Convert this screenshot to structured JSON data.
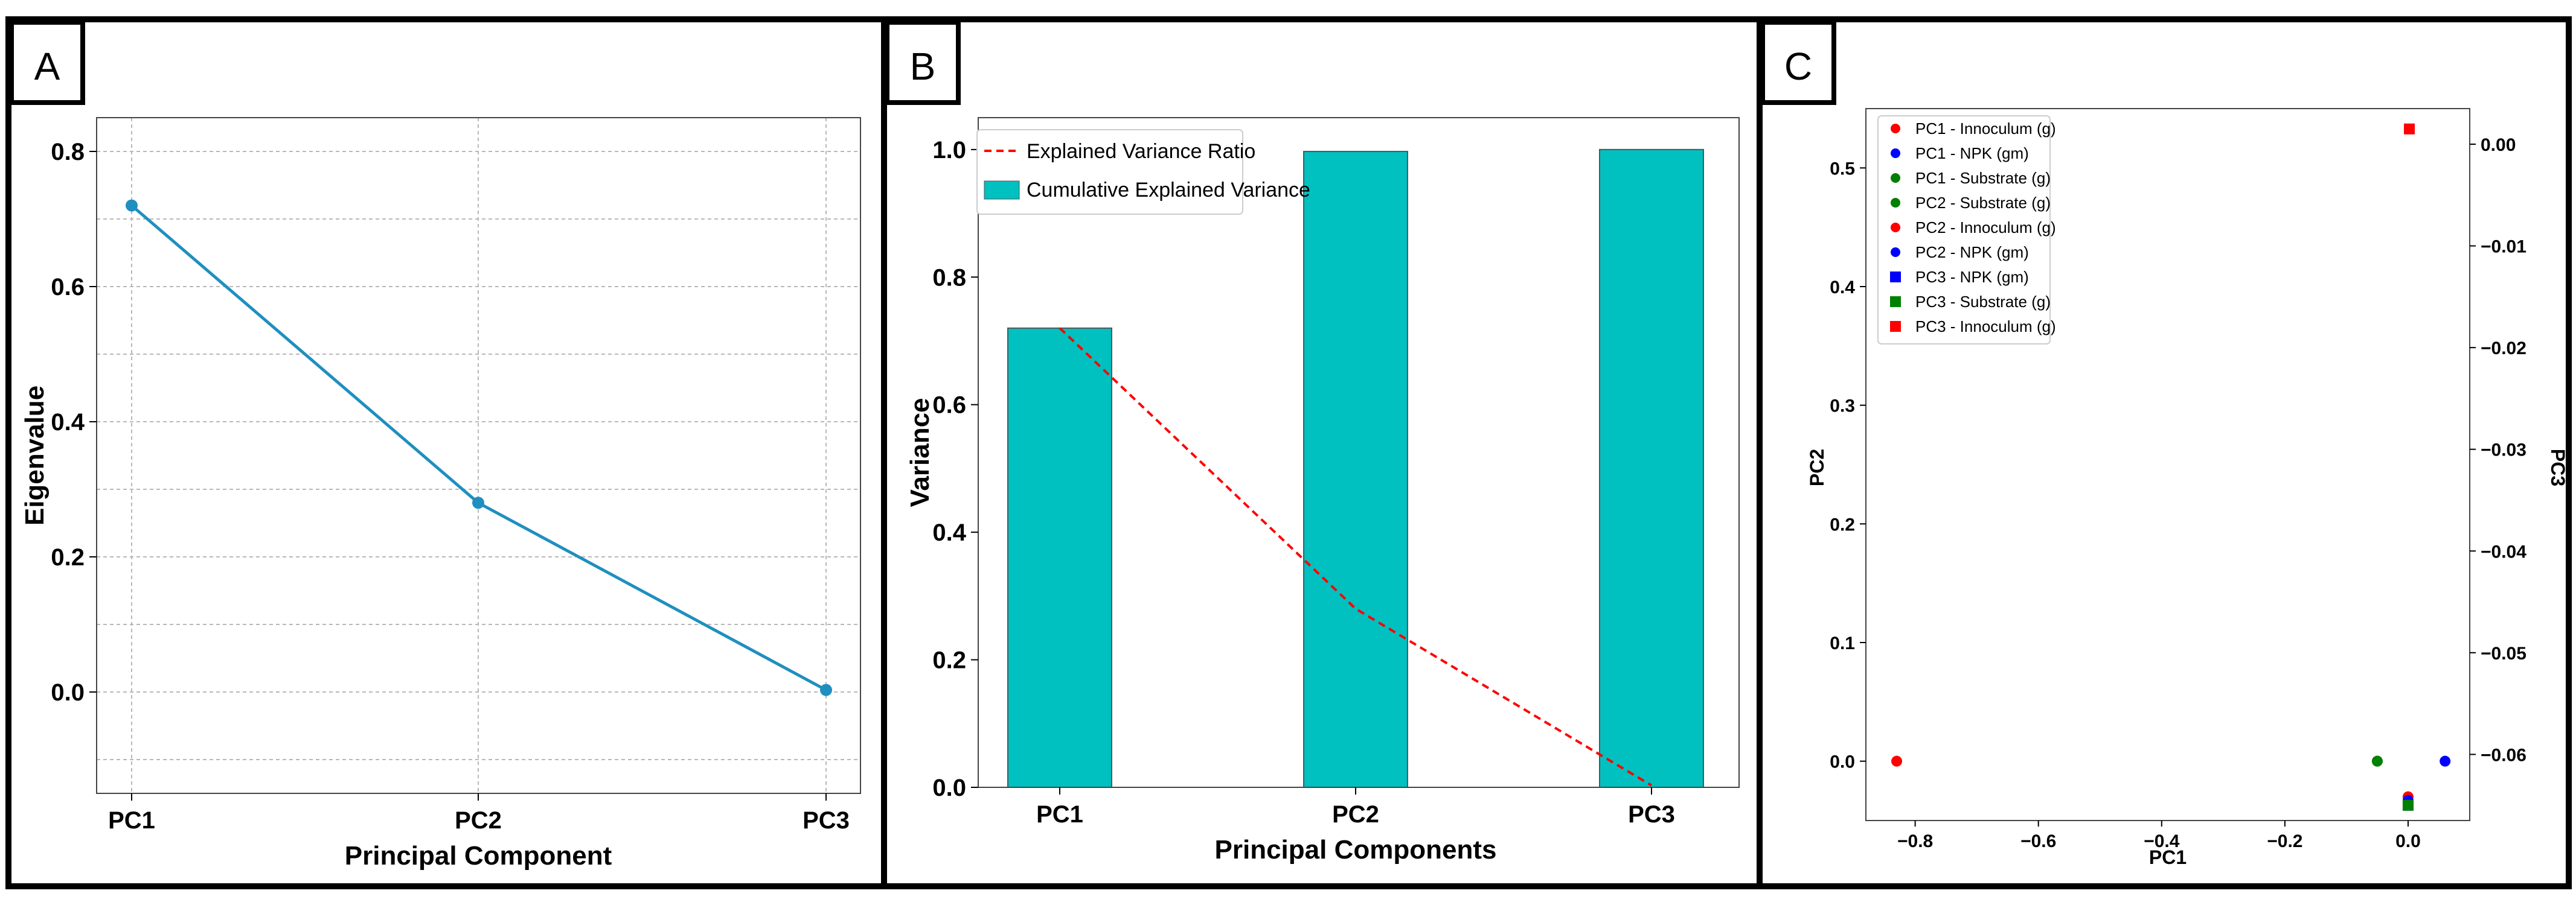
{
  "panels": [
    {
      "letter": "A"
    },
    {
      "letter": "B"
    },
    {
      "letter": "C"
    }
  ],
  "chart_data": [
    {
      "type": "line",
      "panel": "A",
      "categories": [
        "PC1",
        "PC2",
        "PC3"
      ],
      "series": [
        {
          "name": "Eigenvalue",
          "values": [
            0.72,
            0.28,
            0.003
          ]
        }
      ],
      "xlabel": "Principal Component",
      "ylabel": "Eigenvalue",
      "ylim": [
        -0.15,
        0.85
      ],
      "yticks": [
        0.0,
        0.2,
        0.4,
        0.6,
        0.8
      ],
      "ytick_labels": [
        "0.0",
        "0.2",
        "0.4",
        "0.6",
        "0.8"
      ],
      "grid": true,
      "color": "#1f8fbf"
    },
    {
      "type": "bar",
      "panel": "B",
      "categories": [
        "PC1",
        "PC2",
        "PC3"
      ],
      "series": [
        {
          "name": "Cumulative Explained Variance",
          "kind": "bar",
          "values": [
            0.72,
            0.997,
            1.0
          ],
          "color": "#00c0c0"
        },
        {
          "name": "Explained Variance Ratio",
          "kind": "line",
          "style": "dashed",
          "values": [
            0.72,
            0.28,
            0.003
          ],
          "color": "#ff0000"
        }
      ],
      "xlabel": "Principal Components",
      "ylabel": "Variance",
      "ylim": [
        0,
        1.05
      ],
      "yticks": [
        0.0,
        0.2,
        0.4,
        0.6,
        0.8,
        1.0
      ],
      "ytick_labels": [
        "0.0",
        "0.2",
        "0.4",
        "0.6",
        "0.8",
        "1.0"
      ],
      "grid": false,
      "legend": "top-left",
      "legend_labels": [
        "Explained Variance Ratio",
        "Cumulative Explained Variance"
      ]
    },
    {
      "type": "scatter",
      "panel": "C",
      "xlabel": "PC1",
      "ylabel": "PC2",
      "y2label": "PC3",
      "xlim": [
        -0.88,
        0.1
      ],
      "ylim": [
        -0.05,
        0.55
      ],
      "y2lim": [
        -0.0665,
        0.0035
      ],
      "xticks": [
        -0.8,
        -0.6,
        -0.4,
        -0.2,
        0.0
      ],
      "xtick_labels": [
        "−0.8",
        "−0.6",
        "−0.4",
        "−0.2",
        "0.0"
      ],
      "yticks": [
        0.0,
        0.1,
        0.2,
        0.3,
        0.4,
        0.5
      ],
      "ytick_labels": [
        "0.0",
        "0.1",
        "0.2",
        "0.3",
        "0.4",
        "0.5"
      ],
      "y2ticks": [
        0.0,
        -0.01,
        -0.02,
        -0.03,
        -0.04,
        -0.05,
        -0.06
      ],
      "y2tick_labels": [
        "0.00",
        "−0.01",
        "−0.02",
        "−0.03",
        "−0.04",
        "−0.05",
        "−0.06"
      ],
      "legend": "top-left",
      "series": [
        {
          "name": "PC1 - Innoculum (g)",
          "marker": "circle",
          "color": "#ff0000",
          "axis": "left",
          "x": -0.83,
          "y": 0.0
        },
        {
          "name": "PC1 - NPK (gm)",
          "marker": "circle",
          "color": "#0000ff",
          "axis": "left",
          "x": 0.06,
          "y": 0.0
        },
        {
          "name": "PC1 - Substrate (g)",
          "marker": "circle",
          "color": "#008000",
          "axis": "left",
          "x": -0.05,
          "y": 0.0
        },
        {
          "name": "PC2 - Substrate (g)",
          "marker": "circle",
          "color": "#008000",
          "axis": "left",
          "x": -0.05,
          "y": 0.0
        },
        {
          "name": "PC2 - Innoculum (g)",
          "marker": "circle",
          "color": "#ff0000",
          "axis": "left",
          "x": 0.0,
          "y": -0.03
        },
        {
          "name": "PC2 - NPK (gm)",
          "marker": "circle",
          "color": "#0000ff",
          "axis": "left",
          "x": 0.0,
          "y": -0.033
        },
        {
          "name": "PC3 - NPK (gm)",
          "marker": "square",
          "color": "#0000ff",
          "axis": "right",
          "x": 0.0,
          "y": -0.065
        },
        {
          "name": "PC3 - Substrate (g)",
          "marker": "square",
          "color": "#008000",
          "axis": "right",
          "x": 0.0,
          "y": -0.065
        },
        {
          "name": "PC3 - Innoculum (g)",
          "marker": "square",
          "color": "#ff0000",
          "axis": "right",
          "x": 0.002,
          "y": 0.0015
        }
      ]
    }
  ]
}
